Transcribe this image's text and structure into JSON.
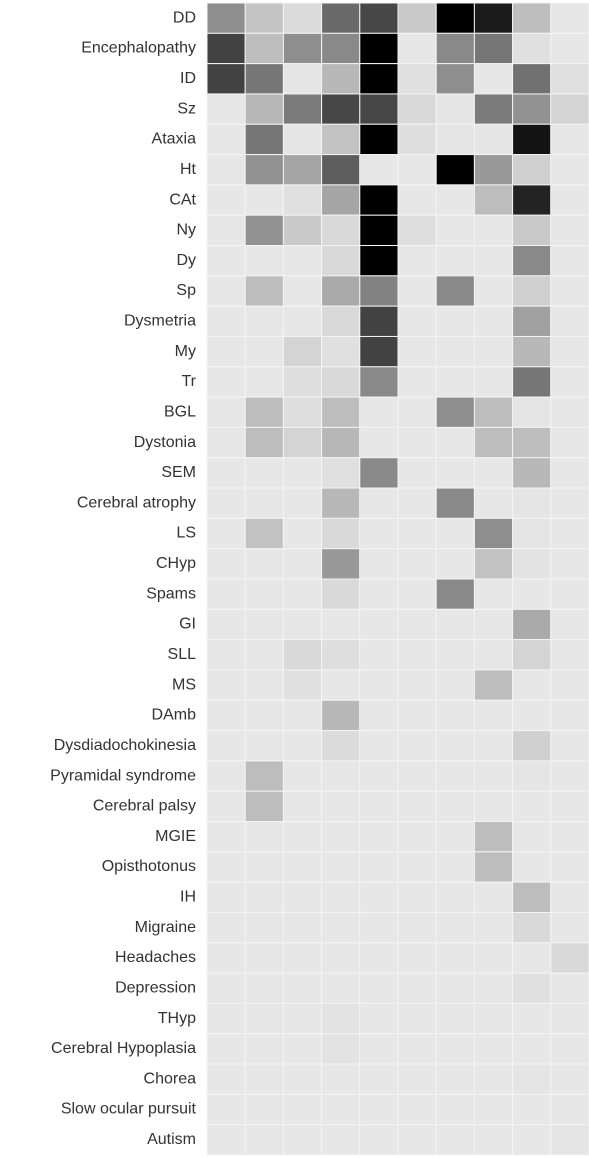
{
  "chart_data": {
    "type": "heatmap",
    "categories": [
      "DD",
      "Encephalopathy",
      "ID",
      "Sz",
      "Ataxia",
      "Ht",
      "CAt",
      "Ny",
      "Dy",
      "Sp",
      "Dysmetria",
      "My",
      "Tr",
      "BGL",
      "Dystonia",
      "SEM",
      "Cerebral atrophy",
      "LS",
      "CHyp",
      "Spams",
      "GI",
      "SLL",
      "MS",
      "DAmb",
      "Dysdiadochokinesia",
      "Pyramidal syndrome",
      "Cerebral palsy",
      "MGIE",
      "Opisthotonus",
      "IH",
      "Migraine",
      "Headaches",
      "Depression",
      "THyp",
      "Cerebral Hypoplasia",
      "Chorea",
      "Slow ocular pursuit",
      "Autism"
    ],
    "values": [
      [
        0.4,
        0.17,
        0.07,
        0.55,
        0.7,
        0.15,
        1,
        0.88,
        0.2,
        0.02
      ],
      [
        0.72,
        0.2,
        0.4,
        0.42,
        1,
        0.02,
        0.42,
        0.5,
        0.05,
        0.02
      ],
      [
        0.72,
        0.5,
        0.03,
        0.22,
        1,
        0.05,
        0.4,
        0.02,
        0.52,
        0.05
      ],
      [
        0.02,
        0.22,
        0.48,
        0.7,
        0.7,
        0.08,
        0.03,
        0.48,
        0.38,
        0.1
      ],
      [
        0.02,
        0.5,
        0.03,
        0.18,
        1,
        0.06,
        0.03,
        0.03,
        0.92,
        0.02
      ],
      [
        0.02,
        0.38,
        0.3,
        0.6,
        0.02,
        0.02,
        1,
        0.35,
        0.12,
        0.02
      ],
      [
        0.02,
        0.02,
        0.05,
        0.3,
        1,
        0.02,
        0.02,
        0.2,
        0.85,
        0.02
      ],
      [
        0.02,
        0.38,
        0.15,
        0.08,
        1,
        0.06,
        0.02,
        0.02,
        0.15,
        0.02
      ],
      [
        0.02,
        0.02,
        0.02,
        0.08,
        1,
        0.02,
        0.02,
        0.02,
        0.42,
        0.02
      ],
      [
        0.02,
        0.2,
        0.02,
        0.28,
        0.45,
        0.02,
        0.42,
        0.02,
        0.12,
        0.02
      ],
      [
        0.02,
        0.02,
        0.02,
        0.08,
        0.72,
        0.02,
        0.02,
        0.02,
        0.32,
        0.02
      ],
      [
        0.02,
        0.02,
        0.1,
        0.05,
        0.72,
        0.02,
        0.02,
        0.02,
        0.22,
        0.02
      ],
      [
        0.02,
        0.02,
        0.06,
        0.08,
        0.42,
        0.02,
        0.02,
        0.02,
        0.5,
        0.02
      ],
      [
        0.02,
        0.2,
        0.06,
        0.2,
        0.02,
        0.02,
        0.4,
        0.2,
        0.03,
        0.02
      ],
      [
        0.02,
        0.2,
        0.1,
        0.22,
        0.02,
        0.02,
        0.02,
        0.2,
        0.2,
        0.02
      ],
      [
        0.02,
        0.02,
        0.02,
        0.05,
        0.42,
        0.02,
        0.02,
        0.02,
        0.22,
        0.02
      ],
      [
        0.02,
        0.02,
        0.02,
        0.22,
        0.02,
        0.02,
        0.42,
        0.02,
        0.03,
        0.02
      ],
      [
        0.02,
        0.18,
        0.02,
        0.08,
        0.02,
        0.02,
        0.02,
        0.4,
        0.03,
        0.02
      ],
      [
        0.02,
        0.02,
        0.02,
        0.35,
        0.02,
        0.02,
        0.02,
        0.18,
        0.04,
        0.02
      ],
      [
        0.02,
        0.02,
        0.02,
        0.08,
        0.02,
        0.02,
        0.42,
        0.02,
        0.02,
        0.02
      ],
      [
        0.02,
        0.02,
        0.02,
        0.02,
        0.02,
        0.02,
        0.02,
        0.02,
        0.28,
        0.02
      ],
      [
        0.02,
        0.02,
        0.08,
        0.06,
        0.02,
        0.02,
        0.02,
        0.02,
        0.1,
        0.02
      ],
      [
        0.02,
        0.02,
        0.05,
        0.02,
        0.02,
        0.02,
        0.02,
        0.2,
        0.02,
        0.02
      ],
      [
        0.02,
        0.02,
        0.02,
        0.22,
        0.02,
        0.02,
        0.02,
        0.02,
        0.02,
        0.02
      ],
      [
        0.02,
        0.02,
        0.02,
        0.07,
        0.02,
        0.02,
        0.02,
        0.02,
        0.12,
        0.02
      ],
      [
        0.02,
        0.2,
        0.02,
        0.02,
        0.02,
        0.02,
        0.02,
        0.02,
        0.03,
        0.02
      ],
      [
        0.02,
        0.2,
        0.02,
        0.02,
        0.02,
        0.02,
        0.02,
        0.02,
        0.02,
        0.02
      ],
      [
        0.02,
        0.02,
        0.02,
        0.02,
        0.02,
        0.02,
        0.02,
        0.2,
        0.02,
        0.02
      ],
      [
        0.02,
        0.02,
        0.02,
        0.02,
        0.02,
        0.02,
        0.02,
        0.2,
        0.02,
        0.02
      ],
      [
        0.02,
        0.02,
        0.02,
        0.02,
        0.02,
        0.02,
        0.02,
        0.02,
        0.2,
        0.02
      ],
      [
        0.02,
        0.02,
        0.02,
        0.02,
        0.02,
        0.02,
        0.02,
        0.02,
        0.08,
        0.02
      ],
      [
        0.02,
        0.02,
        0.02,
        0.02,
        0.02,
        0.02,
        0.02,
        0.02,
        0.02,
        0.08
      ],
      [
        0.02,
        0.02,
        0.02,
        0.02,
        0.02,
        0.02,
        0.02,
        0.02,
        0.05,
        0.02
      ],
      [
        0.02,
        0.02,
        0.02,
        0.04,
        0.02,
        0.02,
        0.02,
        0.02,
        0.02,
        0.02
      ],
      [
        0.02,
        0.02,
        0.02,
        0.04,
        0.02,
        0.02,
        0.02,
        0.02,
        0.02,
        0.02
      ],
      [
        0.02,
        0.02,
        0.02,
        0.02,
        0.02,
        0.02,
        0.02,
        0.02,
        0.03,
        0.02
      ],
      [
        0.02,
        0.02,
        0.02,
        0.02,
        0.02,
        0.02,
        0.02,
        0.02,
        0.02,
        0.02
      ],
      [
        0.02,
        0.02,
        0.02,
        0.02,
        0.02,
        0.02,
        0.02,
        0.02,
        0.02,
        0.03
      ]
    ],
    "zlim": [
      0,
      1
    ],
    "colorscale": [
      "#ececec",
      "#000000"
    ]
  }
}
